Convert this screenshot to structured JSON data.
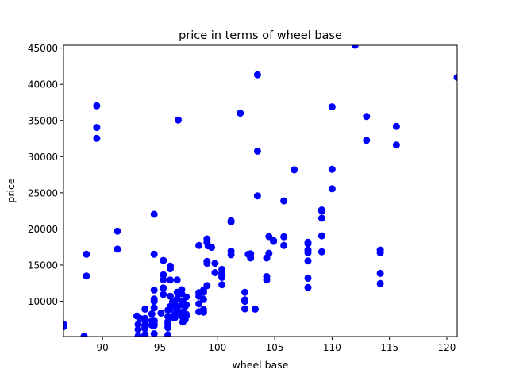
{
  "chart_data": {
    "type": "scatter",
    "title": "price in terms of wheel base",
    "xlabel": "wheel base",
    "ylabel": "price",
    "xlim": [
      86.6,
      120.9
    ],
    "ylim": [
      5118,
      45400
    ],
    "xticks": [
      90,
      95,
      100,
      105,
      110,
      115,
      120
    ],
    "yticks": [
      10000,
      15000,
      20000,
      25000,
      30000,
      35000,
      40000,
      45000
    ],
    "grid": false,
    "marker_color": "#0000ff",
    "points": [
      [
        86.6,
        6479
      ],
      [
        86.6,
        6855
      ],
      [
        88.4,
        5151
      ],
      [
        88.6,
        13495
      ],
      [
        88.6,
        16500
      ],
      [
        89.5,
        37028
      ],
      [
        89.5,
        34028
      ],
      [
        89.5,
        32528
      ],
      [
        91.3,
        19699
      ],
      [
        91.3,
        17199
      ],
      [
        93.0,
        7957
      ],
      [
        93.1,
        5195
      ],
      [
        93.1,
        6095
      ],
      [
        93.1,
        6795
      ],
      [
        93.3,
        7609
      ],
      [
        93.7,
        5348
      ],
      [
        93.7,
        6229
      ],
      [
        93.7,
        6692
      ],
      [
        93.7,
        7609
      ],
      [
        93.7,
        8921
      ],
      [
        93.7,
        5389
      ],
      [
        93.7,
        7499
      ],
      [
        93.7,
        6377
      ],
      [
        93.7,
        7295
      ],
      [
        93.7,
        6575
      ],
      [
        94.3,
        6694
      ],
      [
        94.3,
        7299
      ],
      [
        94.3,
        8249
      ],
      [
        94.5,
        5499
      ],
      [
        94.5,
        7099
      ],
      [
        94.5,
        6649
      ],
      [
        94.5,
        6849
      ],
      [
        94.5,
        7349
      ],
      [
        94.5,
        7299
      ],
      [
        94.5,
        9095
      ],
      [
        94.5,
        9995
      ],
      [
        94.5,
        10295
      ],
      [
        94.5,
        11549
      ],
      [
        94.5,
        16500
      ],
      [
        94.5,
        22018
      ],
      [
        95.1,
        8358
      ],
      [
        95.3,
        12964
      ],
      [
        95.3,
        11845
      ],
      [
        95.3,
        10945
      ],
      [
        95.3,
        13645
      ],
      [
        95.3,
        15645
      ],
      [
        95.7,
        5348
      ],
      [
        95.7,
        6338
      ],
      [
        95.7,
        6488
      ],
      [
        95.7,
        7198
      ],
      [
        95.7,
        6918
      ],
      [
        95.7,
        7898
      ],
      [
        95.7,
        8778
      ],
      [
        95.9,
        12945
      ],
      [
        95.9,
        14869
      ],
      [
        95.9,
        14489
      ],
      [
        95.9,
        9279
      ],
      [
        95.9,
        8949
      ],
      [
        95.9,
        10698
      ],
      [
        96.0,
        7788
      ],
      [
        96.1,
        9233
      ],
      [
        96.1,
        9895
      ],
      [
        96.3,
        7738
      ],
      [
        96.3,
        8238
      ],
      [
        96.3,
        9538
      ],
      [
        96.5,
        8845
      ],
      [
        96.5,
        10345
      ],
      [
        96.5,
        11245
      ],
      [
        96.5,
        12945
      ],
      [
        96.6,
        35056
      ],
      [
        96.9,
        7975
      ],
      [
        96.9,
        8195
      ],
      [
        96.9,
        9495
      ],
      [
        96.9,
        9995
      ],
      [
        96.9,
        11595
      ],
      [
        96.9,
        11048
      ],
      [
        97.0,
        7126
      ],
      [
        97.0,
        7775
      ],
      [
        97.0,
        8495
      ],
      [
        97.0,
        9960
      ],
      [
        97.2,
        7463
      ],
      [
        97.2,
        7995
      ],
      [
        97.2,
        9295
      ],
      [
        97.3,
        7995
      ],
      [
        97.3,
        8195
      ],
      [
        97.3,
        9495
      ],
      [
        97.3,
        10595
      ],
      [
        98.4,
        8558
      ],
      [
        98.4,
        9639
      ],
      [
        98.4,
        10698
      ],
      [
        98.4,
        11199
      ],
      [
        98.4,
        17710
      ],
      [
        98.8,
        8495
      ],
      [
        98.8,
        8845
      ],
      [
        98.8,
        10245
      ],
      [
        98.8,
        11245
      ],
      [
        98.8,
        11549
      ],
      [
        99.1,
        15510
      ],
      [
        99.1,
        15250
      ],
      [
        99.1,
        18150
      ],
      [
        99.1,
        18620
      ],
      [
        99.1,
        12170
      ],
      [
        99.2,
        17669
      ],
      [
        99.5,
        17450
      ],
      [
        99.8,
        13950
      ],
      [
        99.8,
        15250
      ],
      [
        100.4,
        12290
      ],
      [
        100.4,
        13295
      ],
      [
        100.4,
        13845
      ],
      [
        100.4,
        14399
      ],
      [
        100.4,
        13499
      ],
      [
        101.2,
        16430
      ],
      [
        101.2,
        16925
      ],
      [
        101.2,
        20970
      ],
      [
        101.2,
        21105
      ],
      [
        102.0,
        36000
      ],
      [
        102.4,
        8948
      ],
      [
        102.4,
        10198
      ],
      [
        102.4,
        11248
      ],
      [
        102.4,
        9988
      ],
      [
        102.7,
        16503
      ],
      [
        102.9,
        16558
      ],
      [
        102.9,
        15998
      ],
      [
        103.3,
        8921
      ],
      [
        103.5,
        24565
      ],
      [
        103.5,
        30760
      ],
      [
        103.5,
        41315
      ],
      [
        104.3,
        12940
      ],
      [
        104.3,
        13415
      ],
      [
        104.3,
        15985
      ],
      [
        104.5,
        16630
      ],
      [
        104.5,
        18950
      ],
      [
        104.9,
        18280
      ],
      [
        104.9,
        18344
      ],
      [
        104.9,
        18400
      ],
      [
        105.8,
        18920
      ],
      [
        105.8,
        17710
      ],
      [
        105.8,
        23875
      ],
      [
        106.7,
        28176
      ],
      [
        107.9,
        11900
      ],
      [
        107.9,
        13200
      ],
      [
        107.9,
        15580
      ],
      [
        107.9,
        16695
      ],
      [
        107.9,
        17075
      ],
      [
        107.9,
        17950
      ],
      [
        107.9,
        18150
      ],
      [
        109.1,
        16845
      ],
      [
        109.1,
        19045
      ],
      [
        109.1,
        21485
      ],
      [
        109.1,
        22470
      ],
      [
        109.1,
        22625
      ],
      [
        110.0,
        25552
      ],
      [
        110.0,
        28248
      ],
      [
        110.0,
        36880
      ],
      [
        112.0,
        45400
      ],
      [
        113.0,
        32250
      ],
      [
        113.0,
        35550
      ],
      [
        114.2,
        12440
      ],
      [
        114.2,
        13860
      ],
      [
        114.2,
        16695
      ],
      [
        114.2,
        17075
      ],
      [
        115.6,
        31600
      ],
      [
        115.6,
        34184
      ],
      [
        120.9,
        40960
      ]
    ]
  }
}
